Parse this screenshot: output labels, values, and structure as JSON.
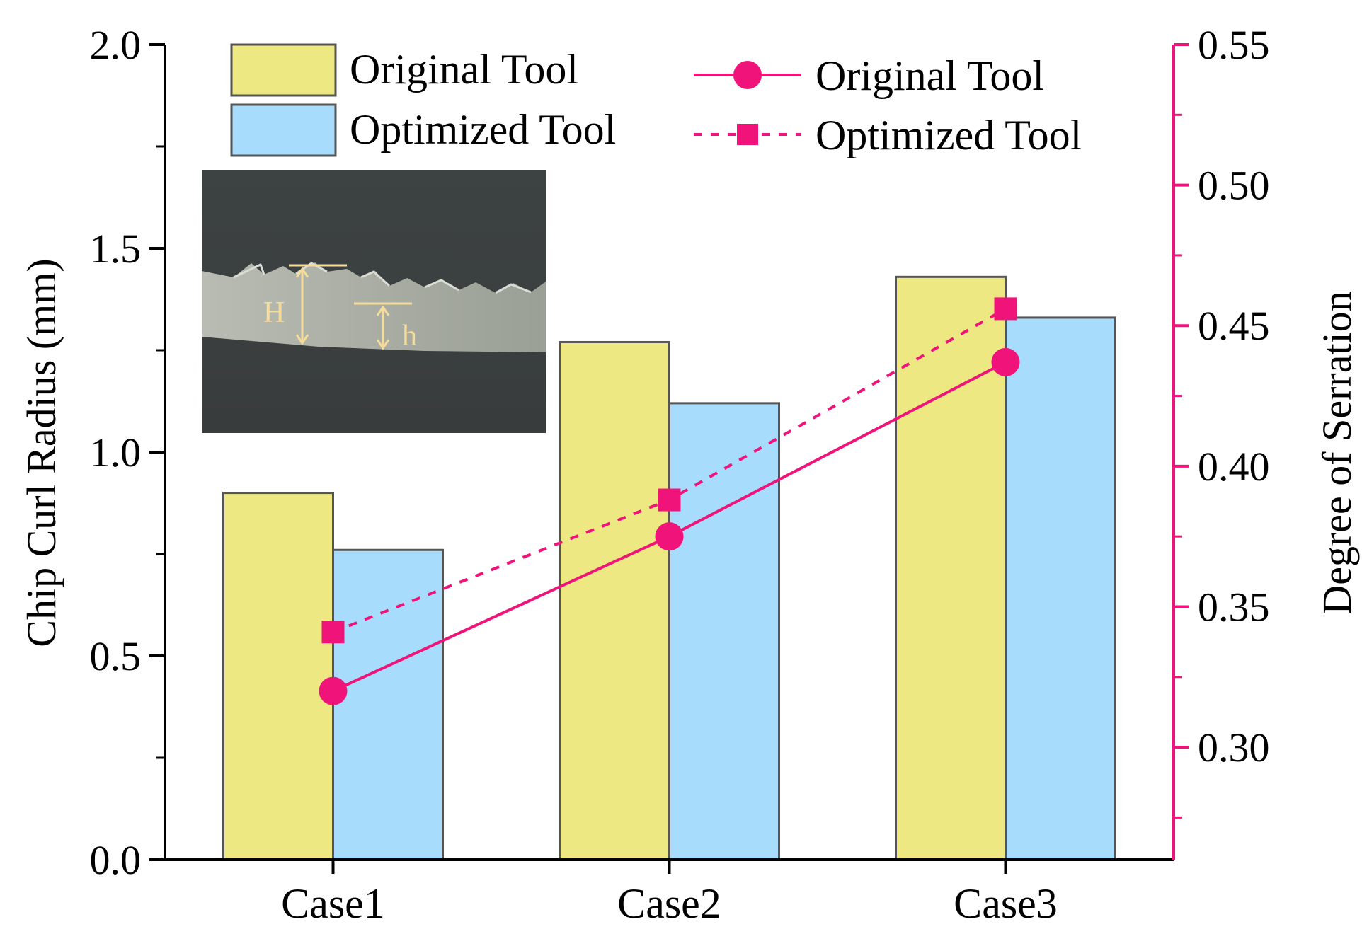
{
  "chart_data": {
    "type": "bar",
    "categories": [
      "Case1",
      "Case2",
      "Case3"
    ],
    "bar_series": [
      {
        "name": "Original Tool",
        "values": [
          0.9,
          1.27,
          1.43
        ],
        "color": "#EDE881"
      },
      {
        "name": "Optimized Tool",
        "values": [
          0.76,
          1.12,
          1.33
        ],
        "color": "#A8DCFC"
      }
    ],
    "line_series": [
      {
        "name": "Original Tool",
        "values": [
          0.32,
          0.375,
          0.437
        ],
        "marker": "circle",
        "style": "solid",
        "color": "#F0137A"
      },
      {
        "name": "Optimized Tool",
        "values": [
          0.341,
          0.388,
          0.456
        ],
        "marker": "square",
        "style": "dashed",
        "color": "#F0137A"
      }
    ],
    "ylabel": "Chip Curl Radius (mm)",
    "y2label": "Degree of Serration",
    "ylim": [
      0,
      2.0
    ],
    "y2lim": [
      0.26,
      0.55
    ],
    "yticks": [
      "0.0",
      "0.5",
      "1.0",
      "1.5",
      "2.0"
    ],
    "y2ticks": [
      "0.30",
      "0.35",
      "0.40",
      "0.45",
      "0.50",
      "0.55"
    ],
    "legend_placement": "top",
    "inset": {
      "description": "micrograph of serrated chip",
      "labels": [
        "H",
        "h"
      ]
    }
  },
  "colors": {
    "axis_left": "#000000",
    "axis_right": "#F0137A",
    "bar_edge": "#555555",
    "inset_annotation": "#F5DC9A"
  }
}
